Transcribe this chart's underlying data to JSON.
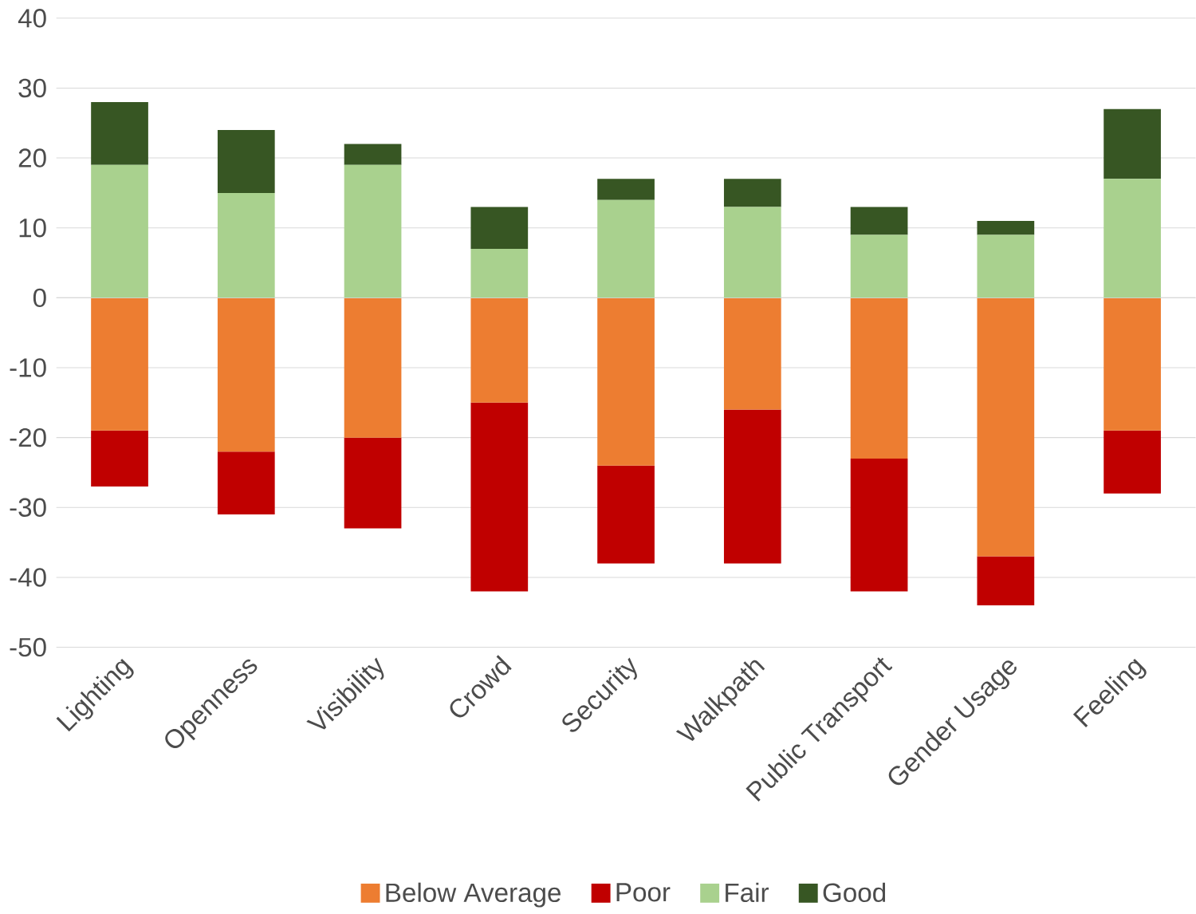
{
  "chart_data": {
    "type": "bar",
    "stacked": true,
    "categories": [
      "Lighting",
      "Openness",
      "Visibility",
      "Crowd",
      "Security",
      "Walkpath",
      "Public Transport",
      "Gender Usage",
      "Feeling"
    ],
    "series": [
      {
        "name": "Below Average",
        "color": "#ed7d31",
        "values": [
          -19,
          -22,
          -20,
          -15,
          -24,
          -16,
          -23,
          -37,
          -19
        ]
      },
      {
        "name": "Poor",
        "color": "#c00000",
        "values": [
          -8,
          -9,
          -13,
          -27,
          -14,
          -22,
          -19,
          -7,
          -9
        ]
      },
      {
        "name": "Fair",
        "color": "#a9d18e",
        "values": [
          19,
          15,
          19,
          7,
          14,
          13,
          9,
          9,
          17
        ]
      },
      {
        "name": "Good",
        "color": "#375623",
        "values": [
          9,
          9,
          3,
          6,
          3,
          4,
          4,
          2,
          10
        ]
      }
    ],
    "ylim": [
      -50,
      40
    ],
    "yticks": [
      -50,
      -40,
      -30,
      -20,
      -10,
      0,
      10,
      20,
      30,
      40
    ],
    "grid": "y",
    "legend": "bottom"
  }
}
